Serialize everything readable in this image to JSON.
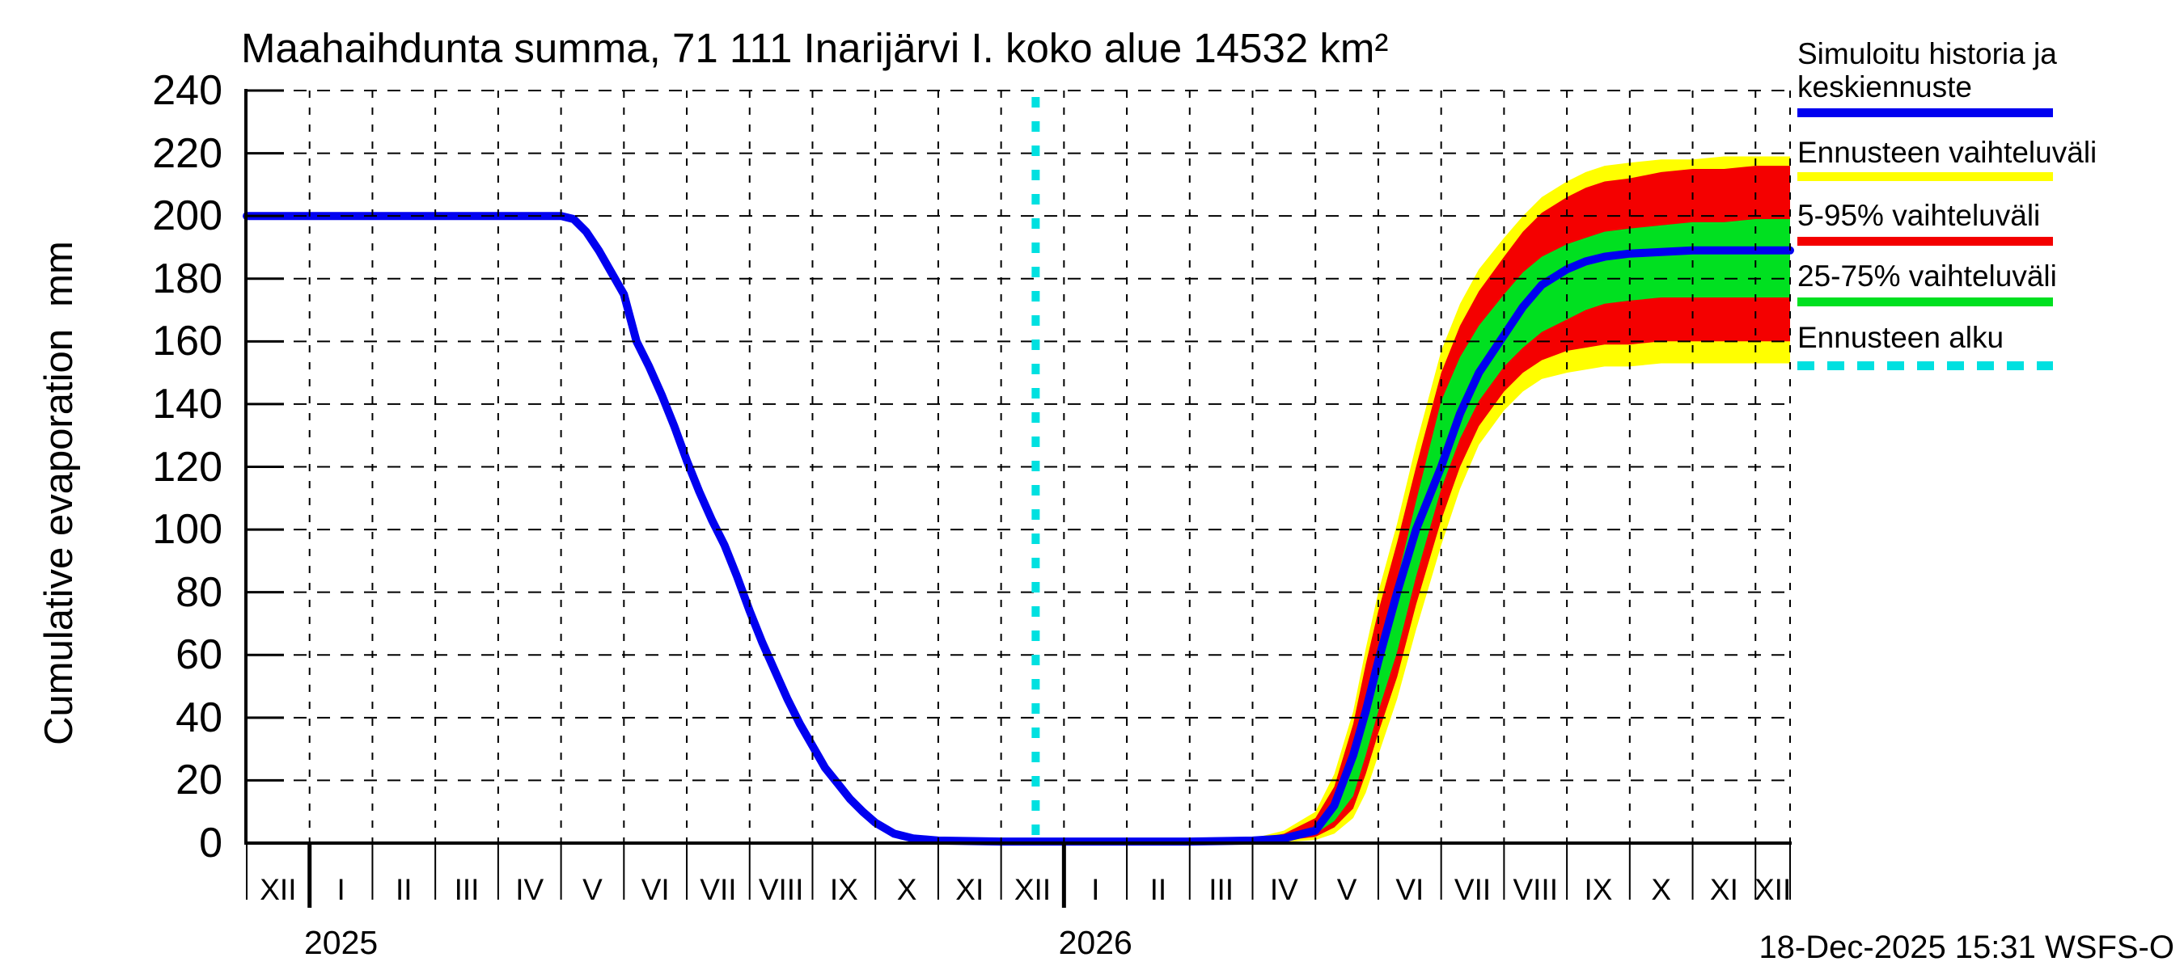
{
  "title": "Maahaihdunta summa, 71 111 Inarijärvi I. koko alue 14532 km²",
  "ylabel": "Cumulative evaporation  mm",
  "timestamp": "18-Dec-2025 15:31 WSFS-O",
  "chart_data": {
    "type": "line",
    "title": "Maahaihdunta summa, 71 111 Inarijärvi I. koko alue 14532 km²",
    "xlabel": "",
    "ylabel": "Cumulative evaporation  mm",
    "ylim": [
      0,
      240
    ],
    "yticks": [
      0,
      20,
      40,
      60,
      80,
      100,
      120,
      140,
      160,
      180,
      200,
      220,
      240
    ],
    "x_axis": {
      "origin": "Dec 2024",
      "months_span": 24.55,
      "month_labels": [
        "XII",
        "I",
        "II",
        "III",
        "IV",
        "V",
        "VI",
        "VII",
        "VIII",
        "IX",
        "X",
        "XI",
        "XII",
        "I",
        "II",
        "III",
        "IV",
        "V",
        "VI",
        "VII",
        "VIII",
        "IX",
        "X",
        "XI",
        "XII"
      ],
      "year_marks": [
        {
          "label": "2025",
          "tick_month": 1,
          "center_month": 1.5
        },
        {
          "label": "2026",
          "tick_month": 13,
          "center_month": 13.5
        }
      ]
    },
    "grid": true,
    "forecast_start_month": 12.55,
    "colors": {
      "median": "#0000f0",
      "outer_band": "#ffff00",
      "band_5_95": "#f40000",
      "band_25_75": "#00e020",
      "forecast_start": "#00e0e0",
      "grid": "#000000"
    },
    "series": [
      {
        "name": "Simuloitu historia ja keskiennuste",
        "role": "median_line",
        "points": [
          [
            0,
            200
          ],
          [
            5,
            200
          ],
          [
            5.2,
            199
          ],
          [
            5.4,
            195
          ],
          [
            5.6,
            189
          ],
          [
            5.8,
            182
          ],
          [
            6,
            175
          ],
          [
            6.2,
            160
          ],
          [
            6.4,
            152
          ],
          [
            6.6,
            143
          ],
          [
            6.8,
            133
          ],
          [
            7,
            122
          ],
          [
            7.2,
            112
          ],
          [
            7.4,
            103
          ],
          [
            7.6,
            95
          ],
          [
            7.8,
            85
          ],
          [
            8,
            74
          ],
          [
            8.2,
            64
          ],
          [
            8.4,
            55
          ],
          [
            8.6,
            46
          ],
          [
            8.8,
            38
          ],
          [
            9,
            31
          ],
          [
            9.2,
            24
          ],
          [
            9.4,
            19
          ],
          [
            9.6,
            14
          ],
          [
            9.8,
            10
          ],
          [
            10,
            6.5
          ],
          [
            10.3,
            3
          ],
          [
            10.6,
            1.5
          ],
          [
            11,
            0.8
          ],
          [
            12,
            0.5
          ],
          [
            13,
            0.5
          ],
          [
            14,
            0.5
          ],
          [
            15,
            0.5
          ],
          [
            16,
            0.8
          ],
          [
            16.5,
            1.5
          ],
          [
            17,
            4
          ],
          [
            17.3,
            12
          ],
          [
            17.6,
            28
          ],
          [
            17.8,
            42
          ],
          [
            18,
            58
          ],
          [
            18.3,
            80
          ],
          [
            18.6,
            100
          ],
          [
            19,
            120
          ],
          [
            19.3,
            137
          ],
          [
            19.6,
            150
          ],
          [
            20,
            162
          ],
          [
            20.3,
            171
          ],
          [
            20.6,
            178
          ],
          [
            21,
            183
          ],
          [
            21.3,
            185.5
          ],
          [
            21.6,
            187
          ],
          [
            22,
            188
          ],
          [
            22.5,
            188.5
          ],
          [
            23,
            189
          ],
          [
            24,
            189
          ],
          [
            24.55,
            189
          ]
        ]
      }
    ],
    "bands": [
      {
        "name": "Ennusteen vaihteluväli",
        "role": "outer_band",
        "x": [
          15.5,
          16,
          16.5,
          17,
          17.3,
          17.6,
          17.8,
          18,
          18.3,
          18.6,
          19,
          19.3,
          19.6,
          20,
          20.3,
          20.6,
          21,
          21.3,
          21.6,
          22,
          22.5,
          23,
          23.5,
          24,
          24.55
        ],
        "hi": [
          0.5,
          1.5,
          4,
          10,
          22,
          42,
          62,
          80,
          102,
          127,
          157,
          172,
          183,
          193,
          200,
          206,
          211,
          214,
          216,
          217,
          218,
          218,
          219,
          219,
          219
        ],
        "lo": [
          0,
          0,
          0.3,
          1,
          3,
          8,
          16,
          28,
          46,
          68,
          95,
          113,
          127,
          138,
          144,
          148,
          150,
          151,
          152,
          152,
          153,
          153,
          153,
          153,
          153
        ]
      },
      {
        "name": "5-95% vaihteluväli",
        "role": "band_5_95",
        "x": [
          15.5,
          16,
          16.5,
          17,
          17.3,
          17.6,
          17.8,
          18,
          18.3,
          18.6,
          19,
          19.3,
          19.6,
          20,
          20.3,
          20.6,
          21,
          21.3,
          21.6,
          22,
          22.5,
          23,
          23.5,
          24,
          24.55
        ],
        "hi": [
          0.4,
          1.2,
          3,
          8,
          18,
          38,
          57,
          74,
          96,
          120,
          150,
          165,
          176,
          187,
          195,
          201,
          206,
          209,
          211,
          212,
          214,
          215,
          215,
          216,
          216
        ],
        "lo": [
          0.1,
          0.3,
          0.8,
          2,
          5,
          11,
          22,
          35,
          53,
          76,
          103,
          120,
          133,
          144,
          150,
          154,
          157,
          158,
          159,
          159,
          160,
          160,
          160,
          160,
          160
        ]
      },
      {
        "name": "25-75% vaihteluväli",
        "role": "band_25_75",
        "x": [
          15.5,
          16,
          16.5,
          17,
          17.3,
          17.6,
          17.8,
          18,
          18.3,
          18.6,
          19,
          19.3,
          19.6,
          20,
          20.3,
          20.6,
          21,
          21.3,
          21.6,
          22,
          22.5,
          23,
          23.5,
          24,
          24.55
        ],
        "hi": [
          0.3,
          0.8,
          2,
          5,
          13,
          29,
          47,
          63,
          84,
          109,
          141,
          155,
          165,
          175,
          182,
          187,
          191,
          193,
          195,
          196,
          197,
          198,
          198,
          199,
          199
        ],
        "lo": [
          0.2,
          0.5,
          1.2,
          3,
          7,
          15,
          28,
          42,
          61,
          85,
          113,
          129,
          141,
          152,
          158,
          163,
          167,
          170,
          172,
          173,
          174,
          174,
          174,
          174,
          174
        ]
      }
    ],
    "legend": [
      {
        "label": "Simuloitu historia ja keskiennuste",
        "color": "#0000f0",
        "style": "solid"
      },
      {
        "label": "Ennusteen vaihteluväli",
        "color": "#ffff00",
        "style": "solid"
      },
      {
        "label": "5-95% vaihteluväli",
        "color": "#f40000",
        "style": "solid"
      },
      {
        "label": "25-75% vaihteluväli",
        "color": "#00e020",
        "style": "solid"
      },
      {
        "label": "Ennusteen alku",
        "color": "#00e0e0",
        "style": "dashed"
      }
    ],
    "legend_position": "top-right"
  }
}
